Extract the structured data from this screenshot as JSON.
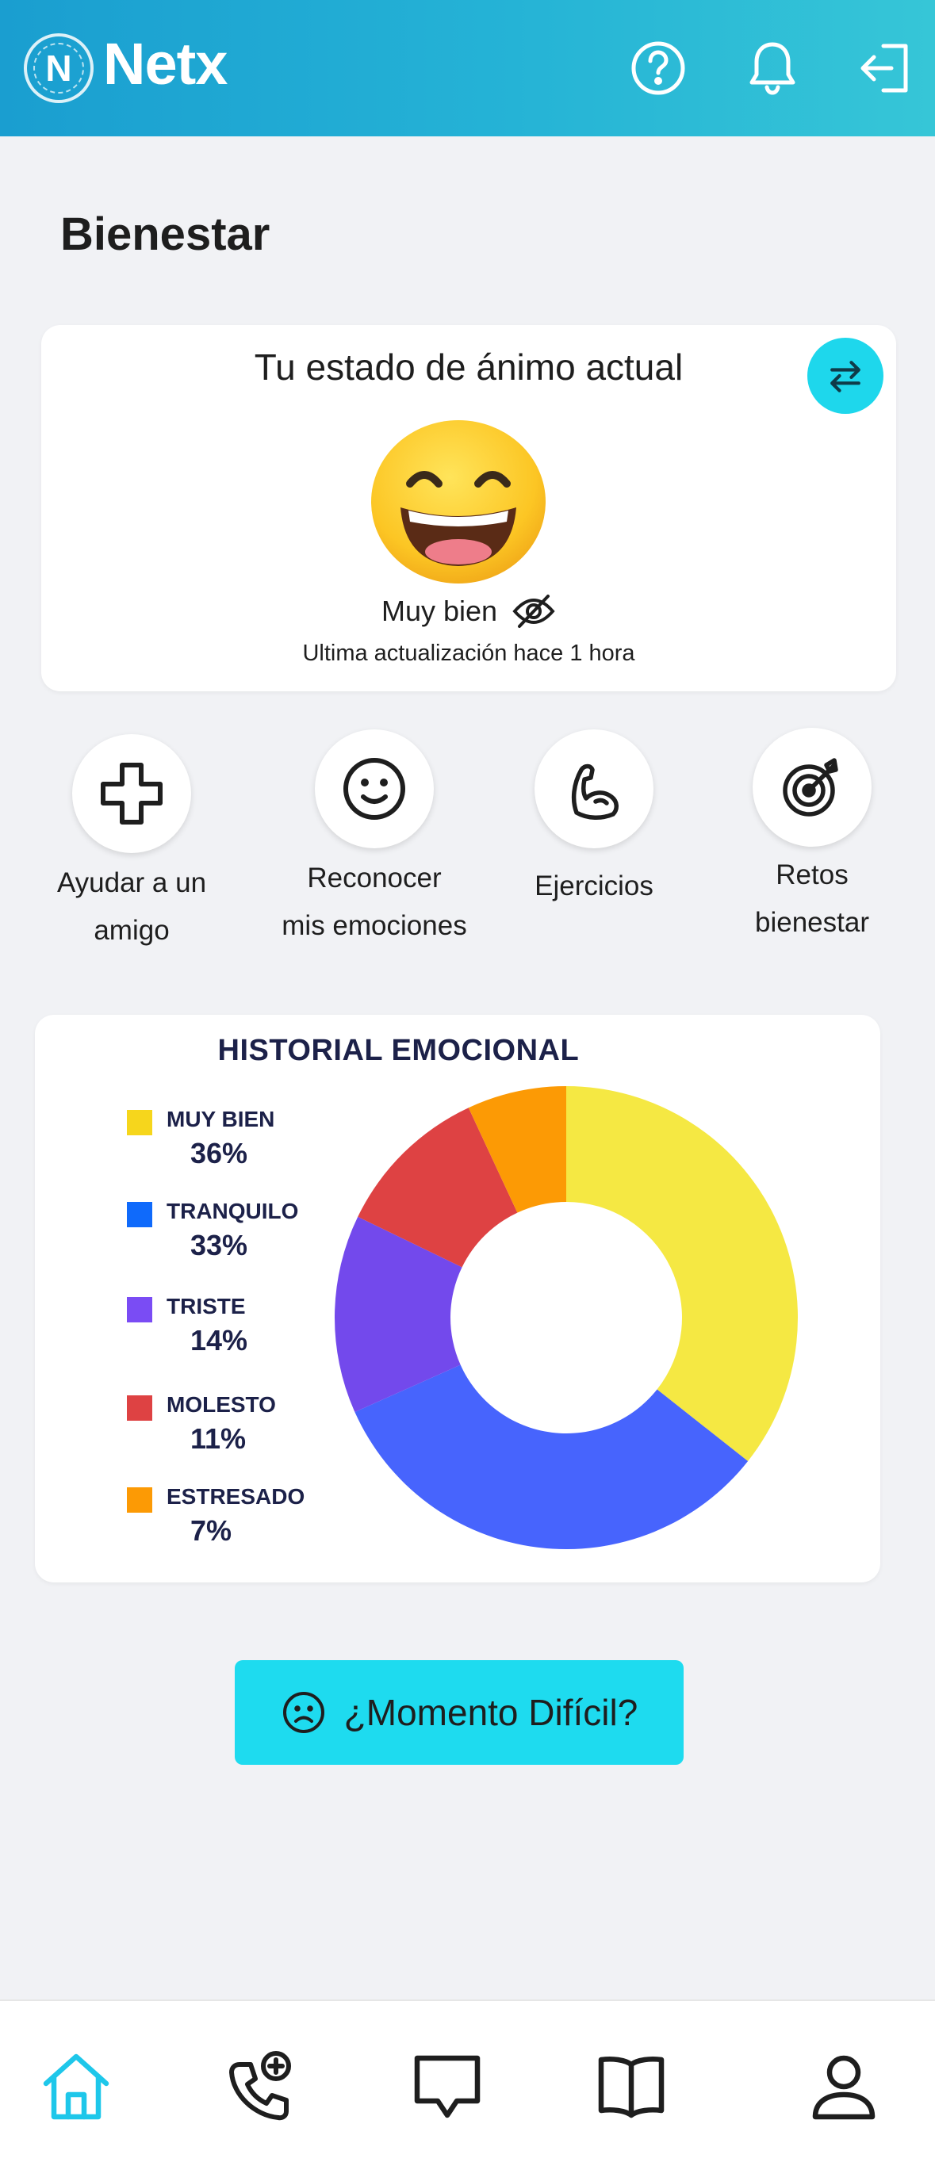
{
  "header": {
    "logo_letter": "N",
    "app_name": "Netx",
    "icons": [
      "help-icon",
      "bell-icon",
      "logout-icon"
    ]
  },
  "page": {
    "title": "Bienestar"
  },
  "mood": {
    "title": "Tu estado de ánimo actual",
    "current": "Muy bien",
    "updated": "Ultima actualización  hace 1 hora",
    "emoji": "grinning-face-with-smiling-eyes"
  },
  "actions": [
    {
      "label": "Ayudar a un\namigo",
      "icon": "plus-icon"
    },
    {
      "label": "Reconocer\nmis emociones",
      "icon": "smiley-icon"
    },
    {
      "label": "Ejercicios",
      "icon": "bicep-icon"
    },
    {
      "label": "Retos\nbienestar",
      "icon": "target-icon"
    }
  ],
  "chart_data": {
    "type": "pie",
    "title": "HISTORIAL EMOCIONAL",
    "donut": true,
    "legend_position": "left",
    "series": [
      {
        "name": "MUY BIEN",
        "pct_label": "36%",
        "value": 36,
        "color": "#f5e843"
      },
      {
        "name": "TRANQUILO",
        "pct_label": "33%",
        "value": 33,
        "color": "#4764fd"
      },
      {
        "name": "TRISTE",
        "pct_label": "14%",
        "value": 14,
        "color": "#7349ec"
      },
      {
        "name": "MOLESTO",
        "pct_label": "11%",
        "value": 11,
        "color": "#de4243"
      },
      {
        "name": "ESTRESADO",
        "pct_label": "7%",
        "value": 7,
        "color": "#fc9a05"
      }
    ],
    "legend_swatch_colors": [
      "#f6d61c",
      "#0f6afb",
      "#7a4cf4",
      "#de4243",
      "#fc9a05"
    ]
  },
  "hard_moment": {
    "label": "¿Momento Difícil?",
    "icon": "sad-face-icon"
  },
  "bottom_nav": {
    "items": [
      "home-icon",
      "phone-plus-icon",
      "chat-icon",
      "book-icon",
      "profile-icon"
    ],
    "active": "home-icon",
    "active_color": "#1ec7ea"
  }
}
